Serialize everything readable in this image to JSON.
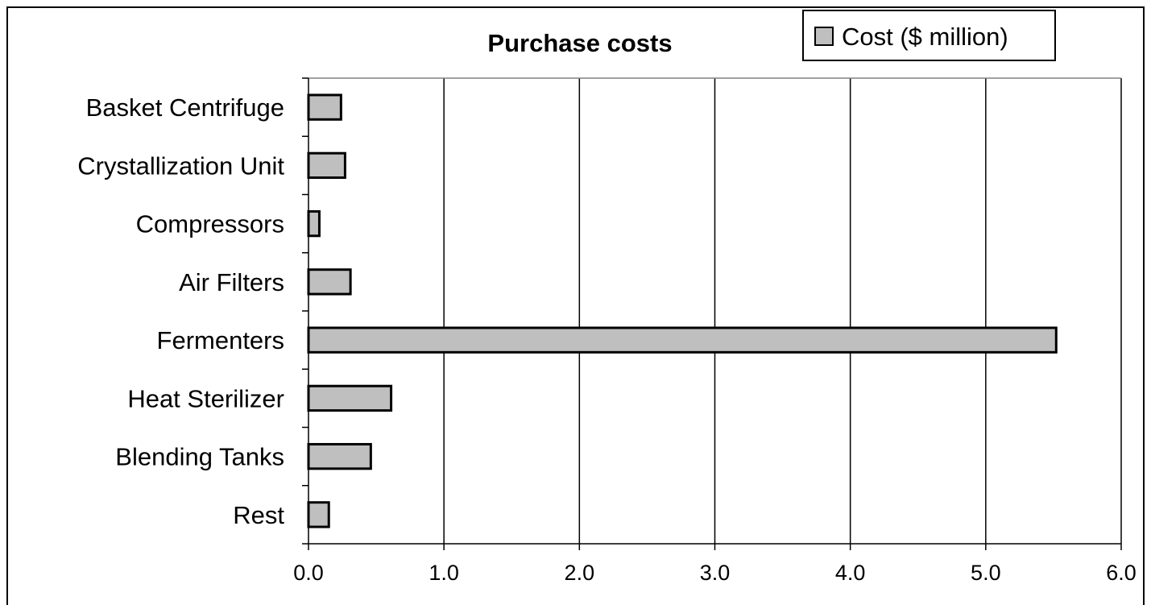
{
  "chart_data": {
    "type": "bar",
    "orientation": "horizontal",
    "title": "Purchase costs",
    "categories": [
      "Basket Centrifuge",
      "Crystallization Unit",
      "Compressors",
      "Air Filters",
      "Fermenters",
      "Heat Sterilizer",
      "Blending Tanks",
      "Rest"
    ],
    "series": [
      {
        "name": "Cost ($ million)",
        "values": [
          0.24,
          0.27,
          0.08,
          0.31,
          5.52,
          0.61,
          0.46,
          0.15
        ]
      }
    ],
    "xlim": [
      0,
      6
    ],
    "x_ticks": [
      "0.0",
      "1.0",
      "2.0",
      "3.0",
      "4.0",
      "5.0",
      "6.0"
    ],
    "grid": "vertical",
    "legend_position": "top-right",
    "colors": {
      "bar_fill": "#bfbfbf",
      "bar_stroke": "#000000",
      "grid": "#000000",
      "background": "#ffffff"
    }
  }
}
